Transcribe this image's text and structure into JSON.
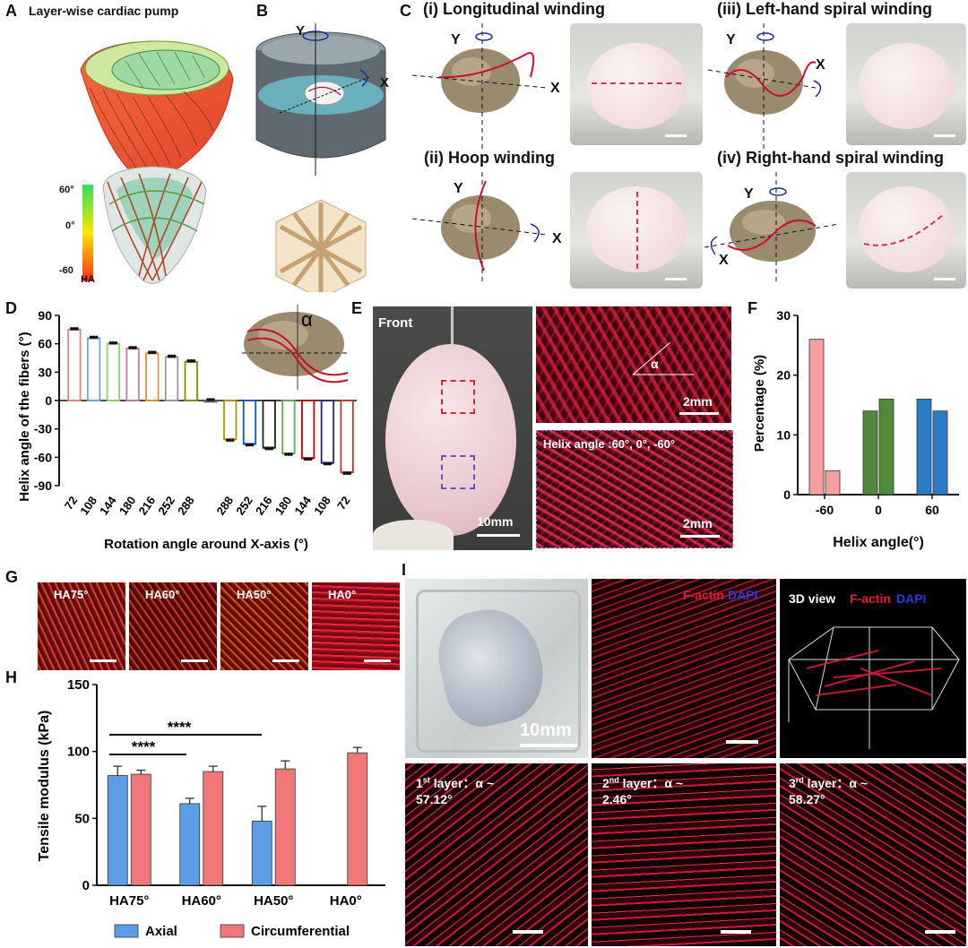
{
  "panels": {
    "A": {
      "label": "A",
      "title": "Layer-wise cardiac pump",
      "colorbar": {
        "max": "60°",
        "mid": "0°",
        "min": "-60",
        "unit": "HA"
      }
    },
    "B": {
      "label": "B",
      "axis_y": "Y",
      "axis_x": "X"
    },
    "C": {
      "label": "C",
      "windings": [
        {
          "title": "(i) Longitudinal winding",
          "axis_y": "Y",
          "axis_x": "X"
        },
        {
          "title": "(ii) Hoop winding",
          "axis_y": "Y",
          "axis_x": "X"
        },
        {
          "title": "(iii) Left-hand spiral winding",
          "axis_y": "Y",
          "axis_x": "X"
        },
        {
          "title": "(iv) Right-hand spiral winding",
          "axis_y": "Y",
          "axis_x": "X"
        }
      ]
    },
    "D": {
      "label": "D",
      "alpha": "α"
    },
    "E": {
      "label": "E",
      "front": "Front",
      "scale_big": "10mm",
      "alpha": "α",
      "scale_top": "2mm",
      "helix_text": "Helix angle :60°, 0°, -60°",
      "scale_bottom": "2mm"
    },
    "F": {
      "label": "F"
    },
    "G": {
      "label": "G",
      "tiles": [
        "HA75°",
        "HA60°",
        "HA50°",
        "HA0°"
      ]
    },
    "H": {
      "label": "H",
      "sig1": "****",
      "sig2": "****"
    },
    "I": {
      "label": "I",
      "scale_photo": "10mm",
      "factin": "F-actin",
      "dapi": "DAPI",
      "view3d": "3D view",
      "layers": [
        {
          "num": "1",
          "sup": "st",
          "rest": " layer：α ~",
          "val": "57.12°"
        },
        {
          "num": "2",
          "sup": "nd",
          "rest": " layer：α ~",
          "val": "2.46°"
        },
        {
          "num": "3",
          "sup": "rd",
          "rest": " layer：α ~",
          "val": "58.27°"
        }
      ]
    }
  },
  "colors": {
    "red_axis": "#c8102e",
    "pink": "#f28b8b",
    "green": "#4e8a3a",
    "blue": "#2a7dc4",
    "axial_blue": "#5b9ee6",
    "circ_red": "#f07878"
  },
  "chart_data": [
    {
      "id": "D",
      "type": "bar",
      "ylabel": "Helix angle of the fibers (°)",
      "xlabel": "Rotation angle around X-axis (°)",
      "ylim": [
        -90,
        90
      ],
      "yticks": [
        90,
        60,
        30,
        0,
        -30,
        -60,
        -90
      ],
      "categories": [
        "72",
        "108",
        "144",
        "180",
        "216",
        "252",
        "288",
        "",
        "288",
        "252",
        "216",
        "180",
        "144",
        "108",
        "72"
      ],
      "values": [
        75,
        66,
        60,
        55,
        50,
        46,
        41,
        0,
        -41,
        -46,
        -50,
        -56,
        -61,
        -66,
        -76
      ],
      "bar_colors": [
        "#f08080",
        "#6fa8dc",
        "#8fd36f",
        "#c27ba0",
        "#e69138",
        "#999999",
        "#8b8b00",
        "#666666",
        "#bf9000",
        "#1155cc",
        "#222222",
        "#6aa84f",
        "#cc0000",
        "#351c75",
        "#c0392b"
      ]
    },
    {
      "id": "F",
      "type": "bar",
      "ylabel": "Percentage (%)",
      "xlabel": "Helix angle(°)",
      "ylim": [
        0,
        30
      ],
      "yticks": [
        0,
        10,
        20,
        30
      ],
      "categories": [
        "-60",
        "0",
        "60"
      ],
      "bars": [
        {
          "group": "-60",
          "values": [
            26,
            4
          ],
          "color": "#f4a0a0"
        },
        {
          "group": "0",
          "values": [
            14,
            16
          ],
          "color": "#4e8a3a"
        },
        {
          "group": "60",
          "values": [
            16,
            14
          ],
          "color": "#2a7dc4"
        }
      ]
    },
    {
      "id": "H",
      "type": "bar",
      "ylabel": "Tensile modulus (kPa)",
      "ylim": [
        0,
        150
      ],
      "yticks": [
        0,
        50,
        100,
        150
      ],
      "categories": [
        "HA75°",
        "HA60°",
        "HA50°",
        "HA0°"
      ],
      "series": [
        {
          "name": "Axial",
          "values": [
            82,
            61,
            48,
            null
          ],
          "errors": [
            7,
            4,
            11,
            null
          ],
          "color": "#5b9ee6"
        },
        {
          "name": "Circumferential",
          "values": [
            83,
            85,
            87,
            99
          ],
          "errors": [
            3,
            4,
            6,
            4
          ],
          "color": "#f07878"
        }
      ]
    }
  ]
}
